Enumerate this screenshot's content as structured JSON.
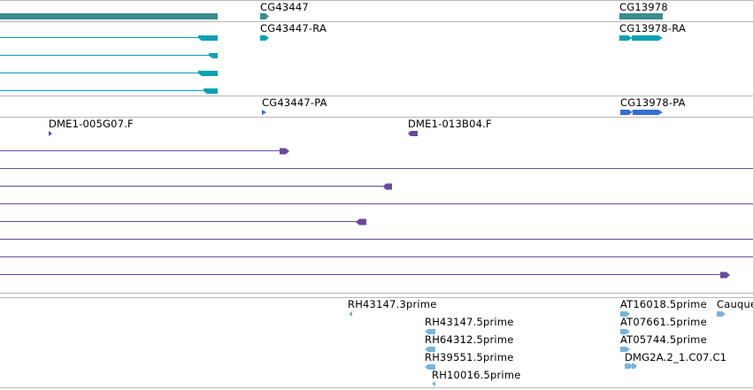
{
  "browser": {
    "track_gene": {
      "features": [
        {
          "id": "gene-left",
          "label": ""
        },
        {
          "id": "gene-cg43447",
          "label": "CG43447"
        },
        {
          "id": "gene-cg13978",
          "label": "CG13978"
        }
      ]
    },
    "track_transcript": {
      "features": [
        {
          "id": "tx-cg43447-ra",
          "label": "CG43447-RA"
        },
        {
          "id": "tx-cg13978-ra",
          "label": "CG13978-RA"
        }
      ]
    },
    "track_protein": {
      "features": [
        {
          "id": "pp-cg43447-pa",
          "label": "CG43447-PA"
        },
        {
          "id": "pp-cg13978-pa",
          "label": "CG13978-PA"
        }
      ]
    },
    "track_clones": {
      "features": [
        {
          "id": "clone-dme1-005g07",
          "label": "DME1-005G07.F"
        },
        {
          "id": "clone-dme1-013b04",
          "label": "DME1-013B04.F"
        }
      ]
    },
    "track_ests": {
      "features": [
        {
          "id": "est-rh43147-3",
          "label": "RH43147.3prime"
        },
        {
          "id": "est-rh43147-5",
          "label": "RH43147.5prime"
        },
        {
          "id": "est-rh64312-5",
          "label": "RH64312.5prime"
        },
        {
          "id": "est-rh39551-5",
          "label": "RH39551.5prime"
        },
        {
          "id": "est-rh10016-5",
          "label": "RH10016.5prime"
        },
        {
          "id": "est-at16018-5",
          "label": "AT16018.5prime"
        },
        {
          "id": "est-at07661-5",
          "label": "AT07661.5prime"
        },
        {
          "id": "est-at05744-5",
          "label": "AT05744.5prime"
        },
        {
          "id": "est-dmg2a2",
          "label": "DMG2A.2_1.C07.C1"
        },
        {
          "id": "est-cauque",
          "label": "Cauque"
        }
      ]
    },
    "colors": {
      "gene": "#3d8c8c",
      "transcript": "#0aa0b0",
      "protein": "#3670cc",
      "clone": "#6a4a9a",
      "est": "#7ab3d8",
      "separator": "#b7b7b7"
    }
  }
}
